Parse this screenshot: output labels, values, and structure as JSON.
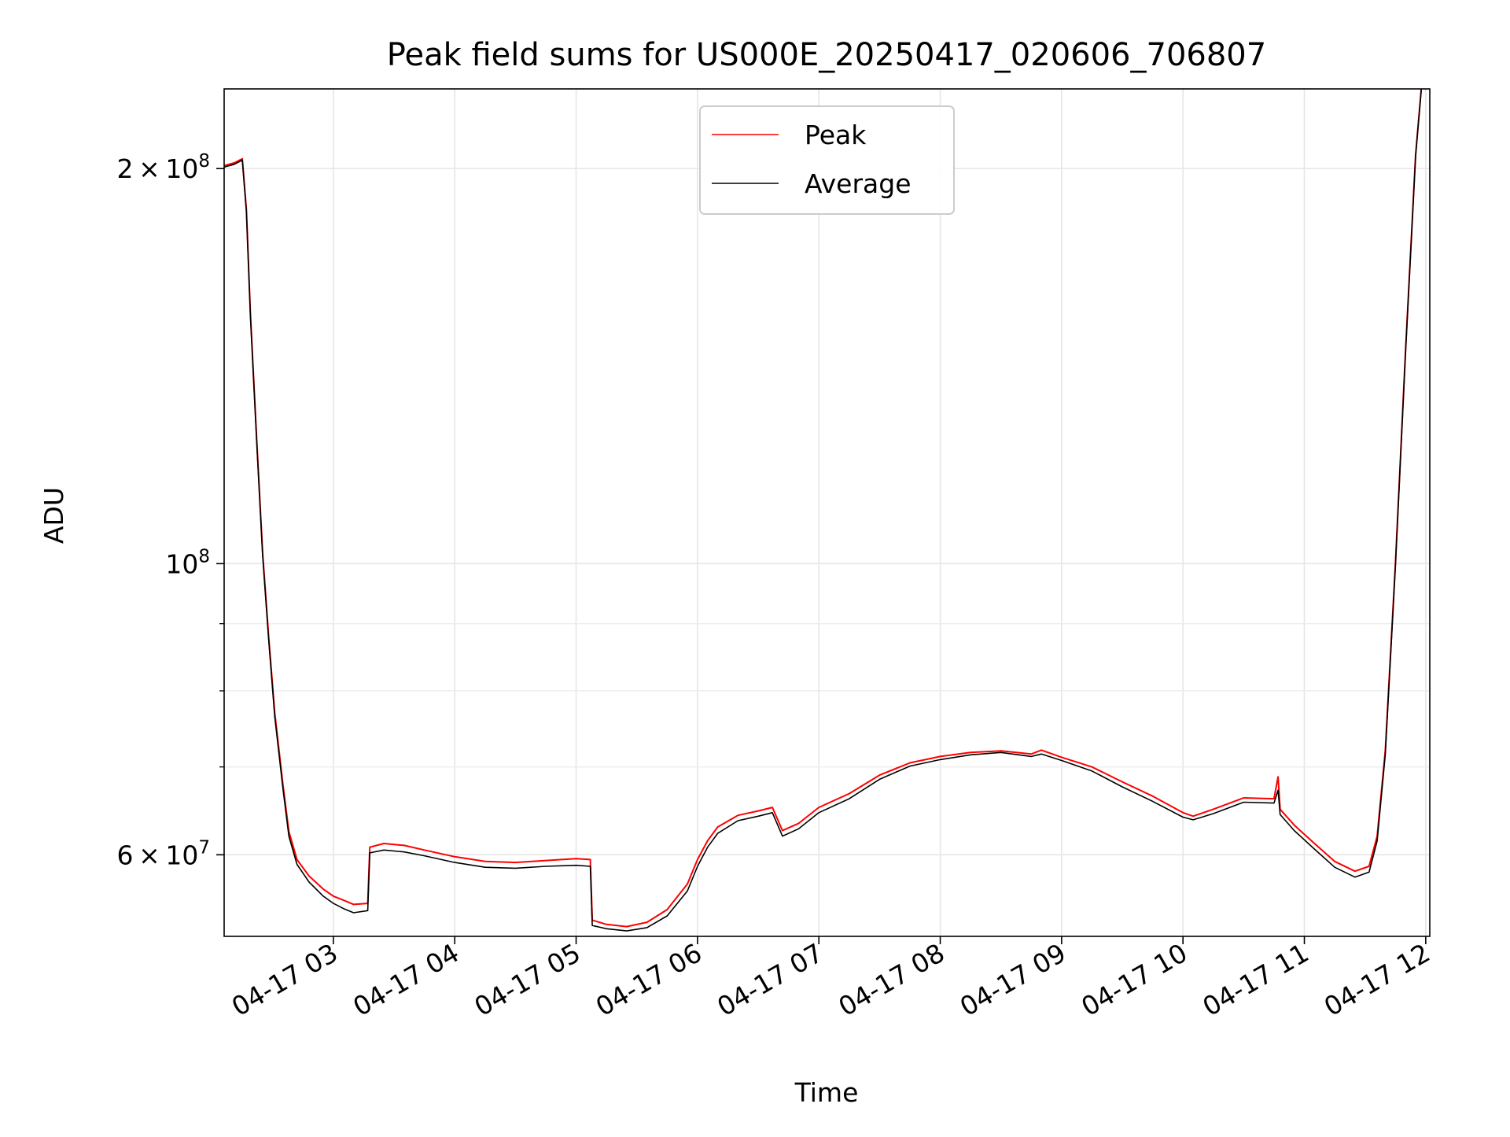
{
  "chart_data": {
    "type": "line",
    "title": "Peak field sums for US000E_20250417_020606_706807",
    "xlabel": "Time",
    "ylabel": "ADU",
    "y_scale": "log",
    "grid": true,
    "legend_position": "upper center",
    "xlim": [
      "04-17 02:06",
      "04-17 12:02"
    ],
    "ylim": [
      52000000,
      230000000
    ],
    "x_ticks": [
      {
        "time": "04-17 03:00",
        "label": "04-17 03"
      },
      {
        "time": "04-17 04:00",
        "label": "04-17 04"
      },
      {
        "time": "04-17 05:00",
        "label": "04-17 05"
      },
      {
        "time": "04-17 06:00",
        "label": "04-17 06"
      },
      {
        "time": "04-17 07:00",
        "label": "04-17 07"
      },
      {
        "time": "04-17 08:00",
        "label": "04-17 08"
      },
      {
        "time": "04-17 09:00",
        "label": "04-17 09"
      },
      {
        "time": "04-17 10:00",
        "label": "04-17 10"
      },
      {
        "time": "04-17 11:00",
        "label": "04-17 11"
      },
      {
        "time": "04-17 12:00",
        "label": "04-17 12"
      }
    ],
    "y_ticks": [
      {
        "value": 60000000,
        "base": "6",
        "mult": "×",
        "exp_base": "10",
        "exp": "7"
      },
      {
        "value": 100000000,
        "base": "",
        "mult": "",
        "exp_base": "10",
        "exp": "8"
      },
      {
        "value": 200000000,
        "base": "2",
        "mult": "×",
        "exp_base": "10",
        "exp": "8"
      }
    ],
    "y_minor_ticks": [
      70000000,
      80000000,
      90000000
    ],
    "series": [
      {
        "name": "Peak",
        "color": "#ff0000",
        "points": [
          [
            "04-17 02:06",
            201000000
          ],
          [
            "04-17 02:11",
            202000000
          ],
          [
            "04-17 02:15",
            203500000
          ],
          [
            "04-17 02:17",
            186000000
          ],
          [
            "04-17 02:19",
            155000000
          ],
          [
            "04-17 02:22",
            125000000
          ],
          [
            "04-17 02:25",
            102000000
          ],
          [
            "04-17 02:28",
            88000000
          ],
          [
            "04-17 02:31",
            77000000
          ],
          [
            "04-17 02:35",
            68000000
          ],
          [
            "04-17 02:38",
            62500000
          ],
          [
            "04-17 02:42",
            59500000
          ],
          [
            "04-17 02:48",
            57800000
          ],
          [
            "04-17 02:55",
            56500000
          ],
          [
            "04-17 03:00",
            55800000
          ],
          [
            "04-17 03:05",
            55400000
          ],
          [
            "04-17 03:10",
            55000000
          ],
          [
            "04-17 03:17",
            55100000
          ],
          [
            "04-17 03:18",
            60800000
          ],
          [
            "04-17 03:25",
            61200000
          ],
          [
            "04-17 03:35",
            61000000
          ],
          [
            "04-17 03:45",
            60500000
          ],
          [
            "04-17 04:00",
            59800000
          ],
          [
            "04-17 04:15",
            59300000
          ],
          [
            "04-17 04:30",
            59200000
          ],
          [
            "04-17 04:45",
            59400000
          ],
          [
            "04-17 05:00",
            59600000
          ],
          [
            "04-17 05:07",
            59500000
          ],
          [
            "04-17 05:08",
            53500000
          ],
          [
            "04-17 05:15",
            53100000
          ],
          [
            "04-17 05:25",
            52900000
          ],
          [
            "04-17 05:35",
            53300000
          ],
          [
            "04-17 05:45",
            54500000
          ],
          [
            "04-17 05:55",
            57000000
          ],
          [
            "04-17 06:00",
            59500000
          ],
          [
            "04-17 06:05",
            61500000
          ],
          [
            "04-17 06:10",
            63000000
          ],
          [
            "04-17 06:20",
            64300000
          ],
          [
            "04-17 06:30",
            64800000
          ],
          [
            "04-17 06:37",
            65200000
          ],
          [
            "04-17 06:42",
            62600000
          ],
          [
            "04-17 06:50",
            63400000
          ],
          [
            "04-17 07:00",
            65200000
          ],
          [
            "04-17 07:15",
            66800000
          ],
          [
            "04-17 07:30",
            69000000
          ],
          [
            "04-17 07:45",
            70500000
          ],
          [
            "04-17 08:00",
            71300000
          ],
          [
            "04-17 08:15",
            71800000
          ],
          [
            "04-17 08:30",
            72000000
          ],
          [
            "04-17 08:45",
            71600000
          ],
          [
            "04-17 08:50",
            72100000
          ],
          [
            "04-17 09:00",
            71200000
          ],
          [
            "04-17 09:15",
            70000000
          ],
          [
            "04-17 09:30",
            68200000
          ],
          [
            "04-17 09:45",
            66500000
          ],
          [
            "04-17 10:00",
            64600000
          ],
          [
            "04-17 10:05",
            64200000
          ],
          [
            "04-17 10:15",
            65000000
          ],
          [
            "04-17 10:30",
            66300000
          ],
          [
            "04-17 10:45",
            66200000
          ],
          [
            "04-17 10:47",
            68800000
          ],
          [
            "04-17 10:48",
            65000000
          ],
          [
            "04-17 10:55",
            63200000
          ],
          [
            "04-17 11:05",
            61200000
          ],
          [
            "04-17 11:15",
            59300000
          ],
          [
            "04-17 11:25",
            58300000
          ],
          [
            "04-17 11:32",
            58800000
          ],
          [
            "04-17 11:36",
            62000000
          ],
          [
            "04-17 11:40",
            72000000
          ],
          [
            "04-17 11:45",
            100000000
          ],
          [
            "04-17 11:50",
            145000000
          ],
          [
            "04-17 11:55",
            205000000
          ],
          [
            "04-17 11:58",
            232000000
          ]
        ]
      },
      {
        "name": "Average",
        "color": "#000000",
        "points": [
          [
            "04-17 02:06",
            200500000
          ],
          [
            "04-17 02:11",
            201500000
          ],
          [
            "04-17 02:15",
            203000000
          ],
          [
            "04-17 02:17",
            185500000
          ],
          [
            "04-17 02:19",
            154500000
          ],
          [
            "04-17 02:22",
            124500000
          ],
          [
            "04-17 02:25",
            101500000
          ],
          [
            "04-17 02:28",
            87500000
          ],
          [
            "04-17 02:31",
            76500000
          ],
          [
            "04-17 02:35",
            67500000
          ],
          [
            "04-17 02:38",
            62000000
          ],
          [
            "04-17 02:42",
            59000000
          ],
          [
            "04-17 02:48",
            57200000
          ],
          [
            "04-17 02:55",
            55800000
          ],
          [
            "04-17 03:00",
            55100000
          ],
          [
            "04-17 03:05",
            54600000
          ],
          [
            "04-17 03:10",
            54200000
          ],
          [
            "04-17 03:17",
            54400000
          ],
          [
            "04-17 03:18",
            60200000
          ],
          [
            "04-17 03:25",
            60500000
          ],
          [
            "04-17 03:35",
            60300000
          ],
          [
            "04-17 03:45",
            59900000
          ],
          [
            "04-17 04:00",
            59200000
          ],
          [
            "04-17 04:15",
            58700000
          ],
          [
            "04-17 04:30",
            58600000
          ],
          [
            "04-17 04:45",
            58800000
          ],
          [
            "04-17 05:00",
            58900000
          ],
          [
            "04-17 05:07",
            58800000
          ],
          [
            "04-17 05:08",
            53000000
          ],
          [
            "04-17 05:15",
            52700000
          ],
          [
            "04-17 05:25",
            52500000
          ],
          [
            "04-17 05:35",
            52800000
          ],
          [
            "04-17 05:45",
            53900000
          ],
          [
            "04-17 05:55",
            56300000
          ],
          [
            "04-17 06:00",
            58800000
          ],
          [
            "04-17 06:05",
            60800000
          ],
          [
            "04-17 06:10",
            62300000
          ],
          [
            "04-17 06:20",
            63700000
          ],
          [
            "04-17 06:30",
            64200000
          ],
          [
            "04-17 06:37",
            64600000
          ],
          [
            "04-17 06:42",
            62000000
          ],
          [
            "04-17 06:50",
            62800000
          ],
          [
            "04-17 07:00",
            64600000
          ],
          [
            "04-17 07:15",
            66200000
          ],
          [
            "04-17 07:30",
            68500000
          ],
          [
            "04-17 07:45",
            70100000
          ],
          [
            "04-17 08:00",
            70900000
          ],
          [
            "04-17 08:15",
            71500000
          ],
          [
            "04-17 08:30",
            71800000
          ],
          [
            "04-17 08:45",
            71300000
          ],
          [
            "04-17 08:50",
            71600000
          ],
          [
            "04-17 09:00",
            70800000
          ],
          [
            "04-17 09:15",
            69500000
          ],
          [
            "04-17 09:30",
            67600000
          ],
          [
            "04-17 09:45",
            65900000
          ],
          [
            "04-17 10:00",
            64100000
          ],
          [
            "04-17 10:05",
            63800000
          ],
          [
            "04-17 10:15",
            64500000
          ],
          [
            "04-17 10:30",
            65800000
          ],
          [
            "04-17 10:45",
            65700000
          ],
          [
            "04-17 10:47",
            67200000
          ],
          [
            "04-17 10:48",
            64400000
          ],
          [
            "04-17 10:55",
            62600000
          ],
          [
            "04-17 11:05",
            60600000
          ],
          [
            "04-17 11:15",
            58700000
          ],
          [
            "04-17 11:25",
            57700000
          ],
          [
            "04-17 11:32",
            58200000
          ],
          [
            "04-17 11:36",
            61500000
          ],
          [
            "04-17 11:40",
            71500000
          ],
          [
            "04-17 11:45",
            99500000
          ],
          [
            "04-17 11:50",
            144500000
          ],
          [
            "04-17 11:55",
            204500000
          ],
          [
            "04-17 11:58",
            231500000
          ]
        ]
      }
    ]
  }
}
